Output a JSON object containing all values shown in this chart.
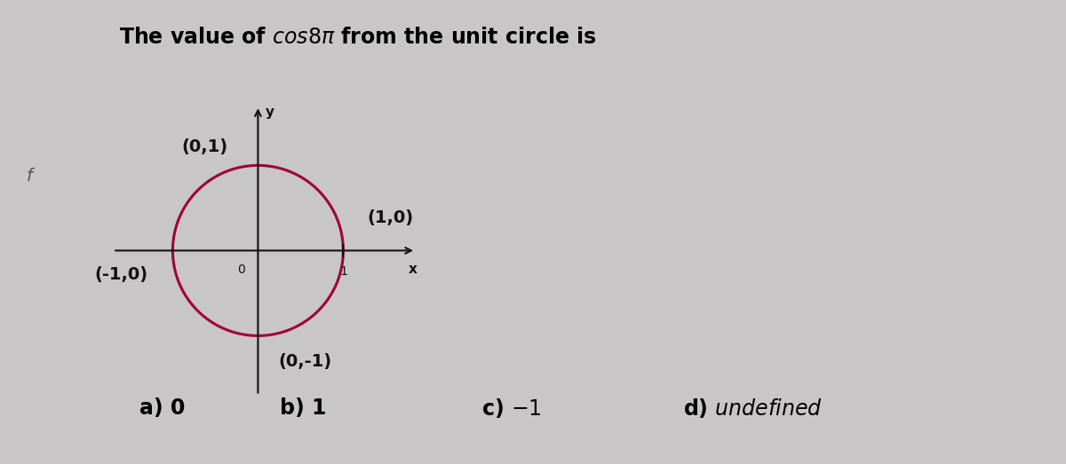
{
  "bg_color": "#c8c6c6",
  "panel_color": "#dedad8",
  "title_fontsize": 17,
  "circle_color": "#a0003a",
  "circle_linewidth": 2.2,
  "axis_color": "#111111",
  "label_color": "#111111",
  "fontsize_labels": 14,
  "fontsize_choices": 17,
  "origin_label": "0",
  "x_axis_label": "x",
  "y_axis_label": "y",
  "left_bar_color": "#b0aeae"
}
